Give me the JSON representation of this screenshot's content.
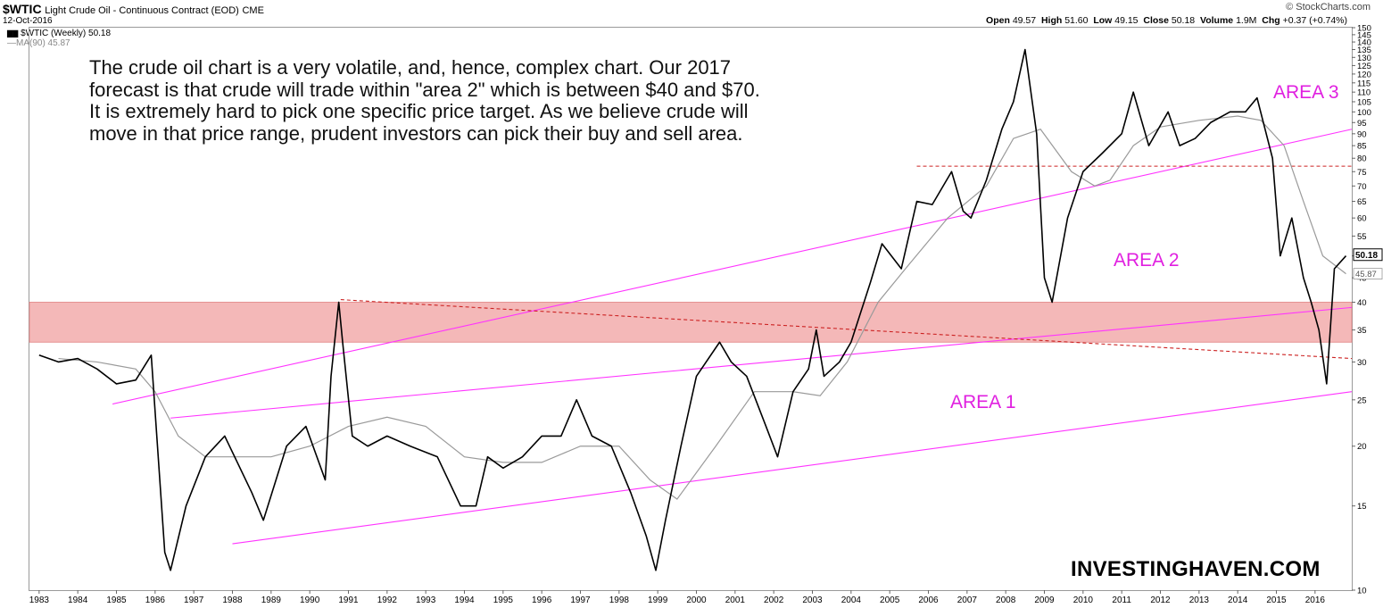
{
  "header": {
    "symbol": "$WTIC",
    "name": "Light Crude Oil - Continuous Contract (EOD)",
    "exchange": "CME",
    "date": "12-Oct-2016",
    "credit": "© StockCharts.com",
    "quote": {
      "open_label": "Open",
      "open": "49.57",
      "high_label": "High",
      "high": "51.60",
      "low_label": "Low",
      "low": "49.15",
      "close_label": "Close",
      "close": "50.18",
      "volume_label": "Volume",
      "volume": "1.9M",
      "chg_label": "Chg",
      "chg": "+0.37 (+0.74%)"
    }
  },
  "legend": {
    "price": "$WTIC (Weekly) 50.18",
    "ma": "MA(90) 45.87"
  },
  "annotation_text": "The crude oil chart is a very volatile, and, hence, complex chart. Our 2017 forecast is that crude will trade within \"area 2\" which is between $40 and $70. It is extremely hard to pick one specific price target. As we believe crude will move in that price range, prudent investors can pick their buy and sell area.",
  "area_labels": {
    "area1": "AREA 1",
    "area2": "AREA 2",
    "area3": "AREA 3"
  },
  "brand": "INVESTINGHAVEN.COM",
  "colors": {
    "price": "#000000",
    "ma": "#9a9a9a",
    "trend": "#ff33ff",
    "dashed": "#cc2222",
    "zone": "#f4b8b8"
  },
  "chart_data": {
    "type": "line",
    "scale": "log",
    "ylim": [
      10,
      150
    ],
    "xlim": [
      1982.75,
      2016.95
    ],
    "x_ticks": [
      "1983",
      "1984",
      "1985",
      "1986",
      "1987",
      "1988",
      "1989",
      "1990",
      "1991",
      "1992",
      "1993",
      "1994",
      "1995",
      "1996",
      "1997",
      "1998",
      "1999",
      "2000",
      "2001",
      "2002",
      "2003",
      "2004",
      "2005",
      "2006",
      "2007",
      "2008",
      "2009",
      "2010",
      "2011",
      "2012",
      "2013",
      "2014",
      "2015",
      "2016"
    ],
    "y_ticks": [
      "10",
      "15",
      "20",
      "25",
      "30",
      "35",
      "40",
      "45",
      "50",
      "55",
      "60",
      "65",
      "70",
      "75",
      "80",
      "85",
      "90",
      "95",
      "100",
      "105",
      "110",
      "115",
      "120",
      "125",
      "130",
      "135",
      "140",
      "145",
      "150"
    ],
    "last_price": "50.18",
    "last_ma": "45.87",
    "series": [
      {
        "name": "$WTIC (Weekly)",
        "x": [
          1983.0,
          1983.5,
          1984.0,
          1984.5,
          1985.0,
          1985.5,
          1985.9,
          1986.25,
          1986.4,
          1986.8,
          1987.3,
          1987.8,
          1988.5,
          1988.8,
          1989.4,
          1989.9,
          1990.4,
          1990.55,
          1990.75,
          1990.85,
          1991.1,
          1991.5,
          1992.0,
          1992.6,
          1993.3,
          1993.9,
          1994.3,
          1994.6,
          1995.0,
          1995.5,
          1996.0,
          1996.5,
          1996.9,
          1997.3,
          1997.8,
          1998.3,
          1998.7,
          1998.95,
          1999.2,
          1999.6,
          2000.0,
          2000.6,
          2000.9,
          2001.3,
          2001.8,
          2002.1,
          2002.5,
          2002.9,
          2003.1,
          2003.3,
          2003.7,
          2004.0,
          2004.5,
          2004.8,
          2005.3,
          2005.7,
          2006.1,
          2006.6,
          2006.9,
          2007.1,
          2007.5,
          2007.9,
          2008.2,
          2008.5,
          2008.8,
          2009.0,
          2009.2,
          2009.6,
          2010.0,
          2010.5,
          2011.0,
          2011.3,
          2011.7,
          2012.2,
          2012.5,
          2012.9,
          2013.3,
          2013.8,
          2014.2,
          2014.5,
          2014.9,
          2015.1,
          2015.4,
          2015.7,
          2015.9,
          2016.1,
          2016.3,
          2016.5,
          2016.8
        ],
        "values": [
          31,
          30,
          30.5,
          29,
          27,
          27.5,
          31,
          12,
          11,
          15,
          19,
          21,
          16,
          14,
          20,
          22,
          17,
          28,
          40,
          33,
          21,
          20,
          21,
          20,
          19,
          15,
          15,
          19,
          18,
          19,
          21,
          21,
          25,
          21,
          20,
          16,
          13,
          11,
          14,
          20,
          28,
          33,
          30,
          28,
          22,
          19,
          26,
          29,
          35,
          28,
          30,
          33,
          44,
          53,
          47,
          65,
          64,
          75,
          62,
          60,
          72,
          92,
          105,
          135,
          90,
          45,
          40,
          60,
          75,
          82,
          90,
          110,
          85,
          100,
          85,
          88,
          95,
          100,
          100,
          107,
          80,
          50,
          60,
          45,
          40,
          35,
          27,
          47,
          50
        ]
      },
      {
        "name": "MA(90)",
        "x": [
          1983.5,
          1984.5,
          1985.5,
          1986.0,
          1986.6,
          1987.3,
          1988.0,
          1989.0,
          1990.0,
          1991.0,
          1992.0,
          1993.0,
          1994.0,
          1995.0,
          1996.0,
          1997.0,
          1998.0,
          1998.8,
          1999.5,
          2000.5,
          2001.5,
          2002.5,
          2003.2,
          2003.9,
          2004.7,
          2005.5,
          2006.5,
          2007.5,
          2008.2,
          2008.9,
          2009.7,
          2010.3,
          2010.7,
          2011.3,
          2012.0,
          2013.0,
          2014.0,
          2014.6,
          2015.2,
          2015.7,
          2016.2,
          2016.8
        ],
        "values": [
          30.5,
          30,
          29,
          26,
          21,
          19,
          19,
          19,
          20,
          22,
          23,
          22,
          19,
          18.5,
          18.5,
          20,
          20,
          17,
          15.5,
          20,
          26,
          26,
          25.5,
          30,
          40,
          48,
          60,
          70,
          88,
          92,
          75,
          70,
          72,
          85,
          93,
          96,
          98,
          96,
          85,
          65,
          50,
          45.87
        ]
      }
    ]
  }
}
